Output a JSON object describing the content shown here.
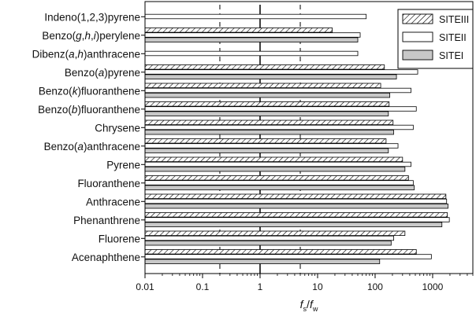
{
  "chart_data": {
    "type": "bar",
    "orientation": "horizontal",
    "x_scale": "log",
    "xlim": [
      0.01,
      5000
    ],
    "xticks": [
      "0.01",
      "0.1",
      "1",
      "10",
      "100",
      "1000"
    ],
    "xlabel": {
      "base": "f",
      "sub1": "s",
      "slash": "/",
      "base2": "f",
      "sub2": "w"
    },
    "reference_lines": {
      "solid": [
        1
      ],
      "dashed": [
        0.2,
        5
      ]
    },
    "legend_position": "top-right",
    "categories": [
      [
        {
          "t": "Indeno(1,2,3)pyrene"
        }
      ],
      [
        {
          "t": "Benzo("
        },
        {
          "t": "g",
          "i": true
        },
        {
          "t": ","
        },
        {
          "t": "h",
          "i": true
        },
        {
          "t": ","
        },
        {
          "t": "i",
          "i": true
        },
        {
          "t": ")perylene"
        }
      ],
      [
        {
          "t": "Dibenz("
        },
        {
          "t": "a",
          "i": true
        },
        {
          "t": ","
        },
        {
          "t": "h",
          "i": true
        },
        {
          "t": ")anthracene"
        }
      ],
      [
        {
          "t": "Benzo("
        },
        {
          "t": "a",
          "i": true
        },
        {
          "t": ")pyrene"
        }
      ],
      [
        {
          "t": "Benzo("
        },
        {
          "t": "k",
          "i": true
        },
        {
          "t": ")fluoranthene"
        }
      ],
      [
        {
          "t": "Benzo("
        },
        {
          "t": "b",
          "i": true
        },
        {
          "t": ")fluoranthene"
        }
      ],
      [
        {
          "t": "Chrysene"
        }
      ],
      [
        {
          "t": "Benzo("
        },
        {
          "t": "a",
          "i": true
        },
        {
          "t": ")anthracene"
        }
      ],
      [
        {
          "t": "Pyrene"
        }
      ],
      [
        {
          "t": "Fluoranthene"
        }
      ],
      [
        {
          "t": "Anthracene"
        }
      ],
      [
        {
          "t": "Phenanthrene"
        }
      ],
      [
        {
          "t": "Fluorene"
        }
      ],
      [
        {
          "t": "Acenaphthene"
        }
      ]
    ],
    "series": [
      {
        "name": "SITEIII",
        "fill": "hatch",
        "values": [
          null,
          18,
          null,
          145,
          125,
          175,
          205,
          155,
          300,
          380,
          1700,
          1800,
          330,
          520
        ]
      },
      {
        "name": "SITEII",
        "fill": "white",
        "values": [
          70,
          55,
          50,
          550,
          420,
          520,
          460,
          250,
          420,
          460,
          1750,
          1950,
          210,
          950
        ]
      },
      {
        "name": "SITEI",
        "fill": "gray",
        "values": [
          null,
          50,
          null,
          235,
          180,
          170,
          210,
          170,
          330,
          480,
          1850,
          1450,
          190,
          120
        ]
      }
    ],
    "colors": {
      "gray_fill": "#c8c8c8",
      "white_fill": "#ffffff",
      "stroke": "#000000"
    }
  }
}
